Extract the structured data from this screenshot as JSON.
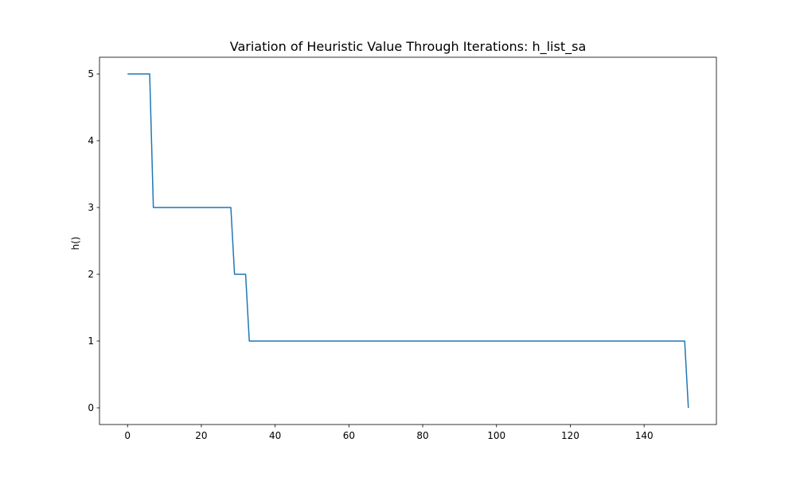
{
  "chart_data": {
    "type": "line",
    "title": "Variation of Heuristic Value Through Iterations: h_list_sa",
    "xlabel": "",
    "ylabel": "h()",
    "xlim": [
      -7.6,
      159.6
    ],
    "ylim": [
      -0.25,
      5.25
    ],
    "xticks": [
      0,
      20,
      40,
      60,
      80,
      100,
      120,
      140
    ],
    "yticks": [
      0,
      1,
      2,
      3,
      4,
      5
    ],
    "grid": false,
    "colors": {
      "line": "#1f77b4",
      "axes": "#000000"
    },
    "series": [
      {
        "x": [
          0,
          6,
          7,
          28,
          29,
          32,
          33,
          151,
          152
        ],
        "values": [
          5,
          5,
          3,
          3,
          2,
          2,
          1,
          1,
          0
        ]
      }
    ]
  }
}
